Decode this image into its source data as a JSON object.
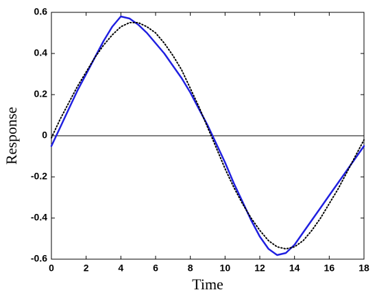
{
  "chart_data": {
    "type": "line",
    "x_label": "Time",
    "y_label": "Response",
    "x": [
      0,
      0.5,
      1,
      1.5,
      2,
      2.5,
      3,
      3.5,
      4,
      4.5,
      5,
      5.5,
      6,
      6.5,
      7,
      7.5,
      8,
      8.5,
      9,
      9.5,
      10,
      10.5,
      11,
      11.5,
      12,
      12.5,
      13,
      13.5,
      14,
      14.5,
      15,
      15.5,
      16,
      16.5,
      17,
      17.5,
      18
    ],
    "series": [
      {
        "color": "#1f1fe0",
        "style": "solid",
        "values": [
          -0.05,
          0.04,
          0.13,
          0.22,
          0.3,
          0.38,
          0.46,
          0.53,
          0.58,
          0.57,
          0.54,
          0.5,
          0.45,
          0.4,
          0.34,
          0.28,
          0.21,
          0.13,
          0.05,
          -0.04,
          -0.13,
          -0.23,
          -0.32,
          -0.41,
          -0.49,
          -0.55,
          -0.58,
          -0.57,
          -0.53,
          -0.47,
          -0.41,
          -0.35,
          -0.29,
          -0.23,
          -0.17,
          -0.11,
          -0.05
        ]
      },
      {
        "color": "#000000",
        "style": "dotted",
        "values": [
          -0.01,
          0.08,
          0.16,
          0.24,
          0.31,
          0.38,
          0.44,
          0.49,
          0.53,
          0.55,
          0.55,
          0.53,
          0.5,
          0.45,
          0.39,
          0.32,
          0.23,
          0.14,
          0.04,
          -0.06,
          -0.16,
          -0.25,
          -0.33,
          -0.4,
          -0.46,
          -0.51,
          -0.54,
          -0.55,
          -0.54,
          -0.51,
          -0.46,
          -0.4,
          -0.33,
          -0.26,
          -0.18,
          -0.1,
          -0.02
        ]
      }
    ],
    "xlim": [
      0,
      18
    ],
    "xticks": [
      0,
      2,
      4,
      6,
      8,
      10,
      12,
      14,
      16,
      18
    ],
    "ylim": [
      -0.6,
      0.6
    ],
    "yticks": [
      -0.6,
      -0.4,
      -0.2,
      0,
      0.2,
      0.4,
      0.6
    ],
    "grid": false
  }
}
